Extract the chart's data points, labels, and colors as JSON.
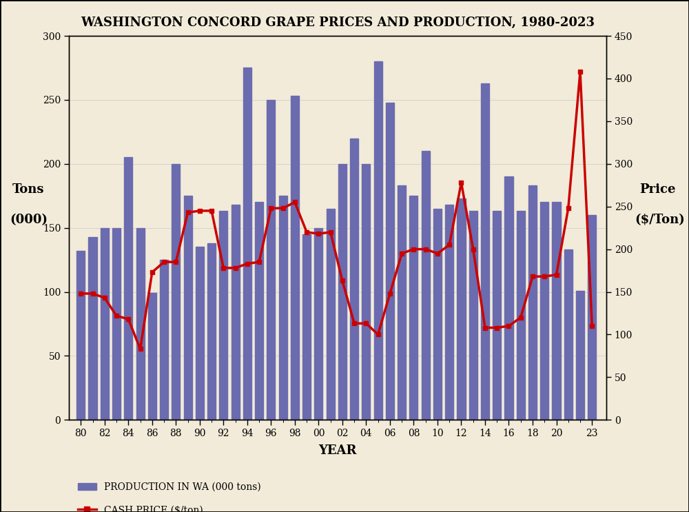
{
  "title": "WASHINGTON CONCORD GRAPE PRICES AND PRODUCTION, 1980-2023",
  "years": [
    1980,
    1981,
    1982,
    1983,
    1984,
    1985,
    1986,
    1987,
    1988,
    1989,
    1990,
    1991,
    1992,
    1993,
    1994,
    1995,
    1996,
    1997,
    1998,
    1999,
    2000,
    2001,
    2002,
    2003,
    2004,
    2005,
    2006,
    2007,
    2008,
    2009,
    2010,
    2011,
    2012,
    2013,
    2014,
    2015,
    2016,
    2017,
    2018,
    2019,
    2020,
    2021,
    2022,
    2023
  ],
  "xtick_labels": [
    "80",
    "82",
    "84",
    "86",
    "88",
    "90",
    "92",
    "94",
    "96",
    "98",
    "00",
    "02",
    "04",
    "06",
    "08",
    "10",
    "12",
    "14",
    "16",
    "18",
    "20",
    "23"
  ],
  "xtick_positions": [
    1980,
    1982,
    1984,
    1986,
    1988,
    1990,
    1992,
    1994,
    1996,
    1998,
    2000,
    2002,
    2004,
    2006,
    2008,
    2010,
    2012,
    2014,
    2016,
    2018,
    2020,
    2023
  ],
  "production": [
    132,
    143,
    150,
    150,
    205,
    150,
    99,
    125,
    200,
    175,
    135,
    138,
    163,
    168,
    275,
    170,
    250,
    175,
    253,
    145,
    150,
    165,
    200,
    220,
    200,
    280,
    248,
    183,
    175,
    210,
    165,
    168,
    173,
    163,
    263,
    163,
    190,
    163,
    183,
    170,
    170,
    133,
    101,
    160
  ],
  "cash_price": [
    148,
    148,
    143,
    122,
    118,
    83,
    173,
    185,
    185,
    243,
    245,
    245,
    178,
    178,
    183,
    185,
    248,
    248,
    255,
    220,
    218,
    220,
    163,
    113,
    113,
    100,
    148,
    195,
    200,
    200,
    195,
    205,
    278,
    200,
    108,
    108,
    110,
    120,
    168,
    168,
    170,
    248,
    408,
    110
  ],
  "bar_color": "#6B6BAF",
  "line_color": "#CC0000",
  "left_ylim": [
    0,
    300
  ],
  "right_ylim": [
    0,
    450
  ],
  "left_yticks": [
    0,
    50,
    100,
    150,
    200,
    250,
    300
  ],
  "right_yticks": [
    0,
    50,
    100,
    150,
    200,
    250,
    300,
    350,
    400,
    450
  ],
  "ylabel_left_line1": "Tons",
  "ylabel_left_line2": "(000)",
  "ylabel_right_line1": "Price",
  "ylabel_right_line2": "($/Ton)",
  "xlabel": "YEAR",
  "legend1_label": "PRODUCTION IN WA (000 tons)",
  "legend2_label": "CASH PRICE ($/ton)",
  "background_color": "#F2EBD9",
  "title_fontsize": 13,
  "tick_fontsize": 10,
  "legend_fontsize": 10
}
